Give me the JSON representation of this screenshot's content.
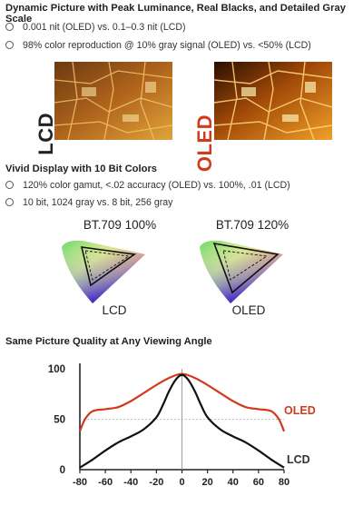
{
  "section1": {
    "heading": "Dynamic Picture with Peak Luminance, Real Blacks, and Detailed Gray Scale",
    "bullets": [
      "0.001 nit (OLED) vs. 0.1–0.3 nit (LCD)",
      "98% color reproduction @ 10% gray signal (OLED) vs. <50% (LCD)"
    ],
    "image_labels": {
      "left": "LCD",
      "right": "OLED"
    }
  },
  "section2": {
    "heading": "Vivid Display with 10 Bit Colors",
    "bullets": [
      "120% color gamut, <.02 accuracy (OLED) vs. 100%, .01 (LCD)",
      "10 bit, 1024 gray vs. 8 bit, 256 gray"
    ],
    "gamuts": [
      {
        "title": "BT.709 100%",
        "label": "LCD"
      },
      {
        "title": "BT.709 120%",
        "label": "OLED"
      }
    ]
  },
  "section3": {
    "heading": "Same Picture Quality at Any Viewing Angle"
  },
  "colors": {
    "oled_red": "#d23a1e",
    "lcd_black": "#111111",
    "lcd_label": "#333333"
  },
  "chart_data": {
    "type": "line",
    "title": "",
    "xlabel": "",
    "ylabel": "",
    "xlim": [
      -80,
      80
    ],
    "ylim": [
      0,
      100
    ],
    "x_ticks": [
      -80,
      -60,
      -40,
      -20,
      0,
      20,
      40,
      60,
      80
    ],
    "y_ticks": [
      0,
      50,
      100
    ],
    "reference_line_y": 50,
    "series": [
      {
        "name": "OLED",
        "color": "#d23a1e",
        "x": [
          -80,
          -76,
          -70,
          -60,
          -50,
          -40,
          -30,
          -20,
          -10,
          0,
          10,
          20,
          30,
          40,
          50,
          60,
          70,
          76,
          80
        ],
        "y": [
          38,
          50,
          58,
          60,
          62,
          68,
          76,
          84,
          91,
          95,
          91,
          84,
          76,
          68,
          62,
          60,
          58,
          50,
          38
        ]
      },
      {
        "name": "LCD",
        "color": "#111111",
        "x": [
          -80,
          -70,
          -60,
          -50,
          -40,
          -30,
          -20,
          -15,
          -10,
          -5,
          0,
          5,
          10,
          15,
          20,
          30,
          40,
          50,
          60,
          70,
          80
        ],
        "y": [
          2,
          10,
          19,
          27,
          33,
          40,
          52,
          64,
          78,
          89,
          94,
          89,
          78,
          64,
          52,
          40,
          33,
          27,
          19,
          10,
          2
        ]
      }
    ]
  }
}
